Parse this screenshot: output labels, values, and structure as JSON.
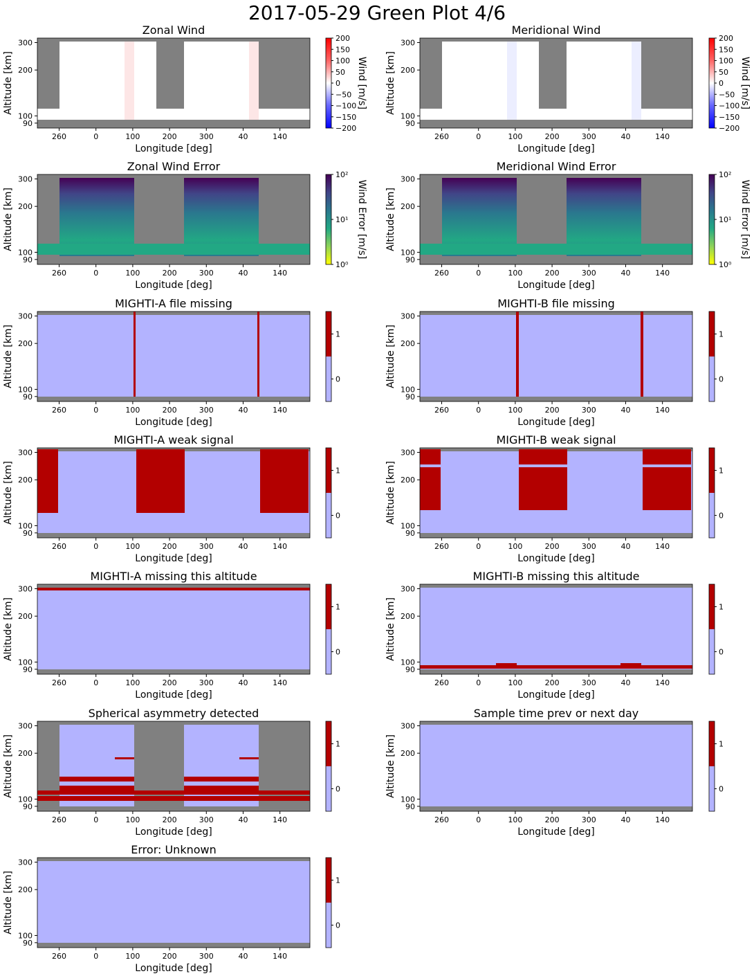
{
  "figure": {
    "title": "2017-05-29 Green Plot 4/6"
  },
  "colors": {
    "gray": "#808080",
    "flag_off": "#b3b3ff",
    "flag_on": "#b30000",
    "wind_white": "#ffffff",
    "wind_red_tint": "#fde6e6",
    "wind_blue_tint": "#eceeff",
    "colorbar_wind": [
      "#0000ff",
      "#6666ff",
      "#ffffff",
      "#ff6666",
      "#ff0000"
    ],
    "colorbar_error": [
      "#ffff00",
      "#8fd35a",
      "#22a884",
      "#2a788e",
      "#414487",
      "#440154"
    ]
  },
  "axes": {
    "xlabel": "Longitude [deg]",
    "ylabel": "Altitude [km]",
    "xtick_labels": [
      "260",
      "0",
      "100",
      "200",
      "300",
      "40",
      "140"
    ],
    "ytick_labels": [
      "300",
      "200",
      "100",
      "90"
    ]
  },
  "colorbars": {
    "wind": {
      "label": "Wind [m/s]",
      "ticks": [
        "200",
        "150",
        "100",
        "50",
        "0",
        "−50",
        "−100",
        "−150",
        "−200"
      ]
    },
    "error": {
      "label": "Wind Error [m/s]",
      "ticks": [
        "10²",
        "10¹",
        "10⁰"
      ]
    },
    "flag": {
      "ticks": [
        "1",
        "0"
      ]
    }
  },
  "chart_data": [
    {
      "type": "heatmap",
      "title": "Zonal Wind",
      "colorbar": "wind",
      "clim": [
        -200,
        200
      ],
      "units": "m/s",
      "value_summary": "near 0 m/s wherever data exist; faint positive tint near the gaps; gray where no data"
    },
    {
      "type": "heatmap",
      "title": "Meridional Wind",
      "colorbar": "wind",
      "clim": [
        -200,
        200
      ],
      "units": "m/s",
      "value_summary": "near 0 m/s wherever data exist; faint negative tint near the gaps; gray where no data"
    },
    {
      "type": "heatmap",
      "title": "Zonal Wind Error",
      "colorbar": "error",
      "clim": [
        1,
        100
      ],
      "scale": "log",
      "units": "m/s",
      "value_summary": "about 10 m/s at mid altitudes rising toward 100 m/s near 300 km"
    },
    {
      "type": "heatmap",
      "title": "Meridional Wind Error",
      "colorbar": "error",
      "clim": [
        1,
        100
      ],
      "scale": "log",
      "units": "m/s",
      "value_summary": "about 10 m/s at mid altitudes rising toward 100 m/s near 300 km"
    },
    {
      "type": "heatmap",
      "title": "MIGHTI-A file missing",
      "colorbar": "flag",
      "values": [
        0,
        1
      ]
    },
    {
      "type": "heatmap",
      "title": "MIGHTI-B file missing",
      "colorbar": "flag",
      "values": [
        0,
        1
      ]
    },
    {
      "type": "heatmap",
      "title": "MIGHTI-A weak signal",
      "colorbar": "flag",
      "values": [
        0,
        1
      ]
    },
    {
      "type": "heatmap",
      "title": "MIGHTI-B weak signal",
      "colorbar": "flag",
      "values": [
        0,
        1
      ]
    },
    {
      "type": "heatmap",
      "title": "MIGHTI-A missing this altitude",
      "colorbar": "flag",
      "values": [
        0,
        1
      ]
    },
    {
      "type": "heatmap",
      "title": "MIGHTI-B missing this altitude",
      "colorbar": "flag",
      "values": [
        0,
        1
      ]
    },
    {
      "type": "heatmap",
      "title": "Spherical asymmetry detected",
      "colorbar": "flag",
      "values": [
        0,
        1
      ]
    },
    {
      "type": "heatmap",
      "title": "Sample time prev or next day",
      "colorbar": "flag",
      "values": [
        0
      ]
    },
    {
      "type": "heatmap",
      "title": "Error: Unknown",
      "colorbar": "flag",
      "values": [
        0
      ]
    }
  ]
}
